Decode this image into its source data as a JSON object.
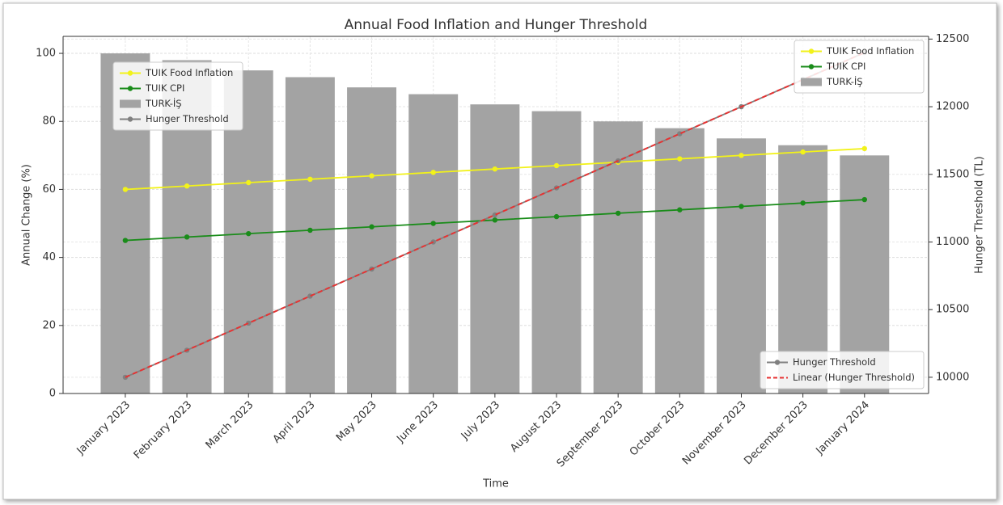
{
  "chart_data": {
    "type": "bar_line",
    "title": "Annual Food Inflation and Hunger Threshold",
    "xlabel": "Time",
    "ylabel": "Annual Change (%)",
    "y2label": "Hunger Threshold (TL)",
    "categories": [
      "January 2023",
      "February 2023",
      "March 2023",
      "April 2023",
      "May 2023",
      "June 2023",
      "July 2023",
      "August 2023",
      "September 2023",
      "October 2023",
      "November 2023",
      "December 2023",
      "January 2024"
    ],
    "series": [
      {
        "name": "TUIK Food Inflation",
        "type": "line",
        "color": "#f2f21a",
        "marker": true,
        "values": [
          60,
          61,
          62,
          63,
          64,
          65,
          66,
          67,
          68,
          69,
          70,
          71,
          72
        ]
      },
      {
        "name": "TUIK CPI",
        "type": "line",
        "color": "#1a8c1a",
        "marker": true,
        "values": [
          45,
          46,
          47,
          48,
          49,
          50,
          51,
          52,
          53,
          54,
          55,
          56,
          57
        ]
      },
      {
        "name": "TURK-İŞ",
        "type": "bar",
        "color": "#a3a3a3",
        "values": [
          100,
          98,
          95,
          93,
          90,
          88,
          85,
          83,
          80,
          78,
          75,
          73,
          70
        ]
      },
      {
        "name": "Hunger Threshold",
        "type": "line",
        "color": "#808080",
        "marker": true,
        "axis": "y2",
        "values": [
          10000,
          10200,
          10400,
          10600,
          10800,
          11000,
          11200,
          11400,
          11600,
          11800,
          12000,
          12200,
          12400
        ]
      },
      {
        "name": "Linear (Hunger Threshold)",
        "type": "line",
        "color": "#e63232",
        "marker": false,
        "dashed": true,
        "axis": "y2",
        "values": [
          10000,
          10200,
          10400,
          10600,
          10800,
          11000,
          11200,
          11400,
          11600,
          11800,
          12000,
          12200,
          12400
        ]
      }
    ],
    "ylim": [
      0,
      105
    ],
    "yticks": [
      0,
      20,
      40,
      60,
      80,
      100
    ],
    "y2lim": [
      9880,
      12520
    ],
    "y2ticks": [
      10000,
      10500,
      11000,
      11500,
      12000,
      12500
    ],
    "grid": true,
    "legends": [
      {
        "position": "upper left",
        "series": [
          0,
          1,
          2,
          3
        ]
      },
      {
        "position": "upper right",
        "series": [
          0,
          1,
          2
        ]
      },
      {
        "position": "lower right",
        "series": [
          3,
          4
        ]
      }
    ]
  }
}
